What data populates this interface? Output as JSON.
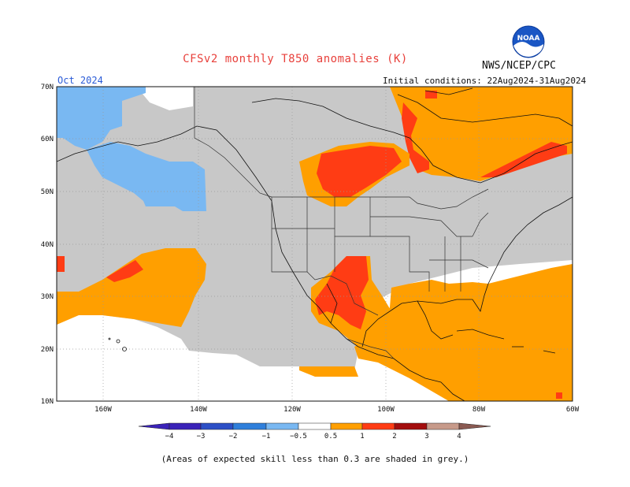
{
  "title": "CFSv2 monthly T850 anomalies (K)",
  "agency": "NWS/NCEP/CPC",
  "valid_month": "Oct 2024",
  "initial_conditions": "Initial conditions: 22Aug2024-31Aug2024",
  "footnote": "(Areas of expected skill less than 0.3 are shaded in grey.)",
  "logo_text": "NOAA",
  "colors": {
    "neg4": "#3a22b8",
    "neg3": "#2c4fc6",
    "neg2": "#2f7fdb",
    "neg1": "#4e9bec",
    "neg05": "#79b8f2",
    "pos05": "#ff9f00",
    "pos1": "#ff3c14",
    "pos2": "#d80f0f",
    "pos3": "#a30d0d",
    "pos4": "#c79a8a",
    "pos5": "#8a5a52",
    "grey": "#c8c8c8"
  },
  "map": {
    "lat_labels": [
      "70N",
      "60N",
      "50N",
      "40N",
      "30N",
      "20N",
      "10N"
    ],
    "lon_labels": [
      "160W",
      "140W",
      "120W",
      "100W",
      "80W",
      "60W"
    ]
  },
  "colorbar": {
    "labels": [
      "−4",
      "−3",
      "−2",
      "−1",
      "−0.5",
      "0.5",
      "1",
      "2",
      "3",
      "4"
    ]
  }
}
